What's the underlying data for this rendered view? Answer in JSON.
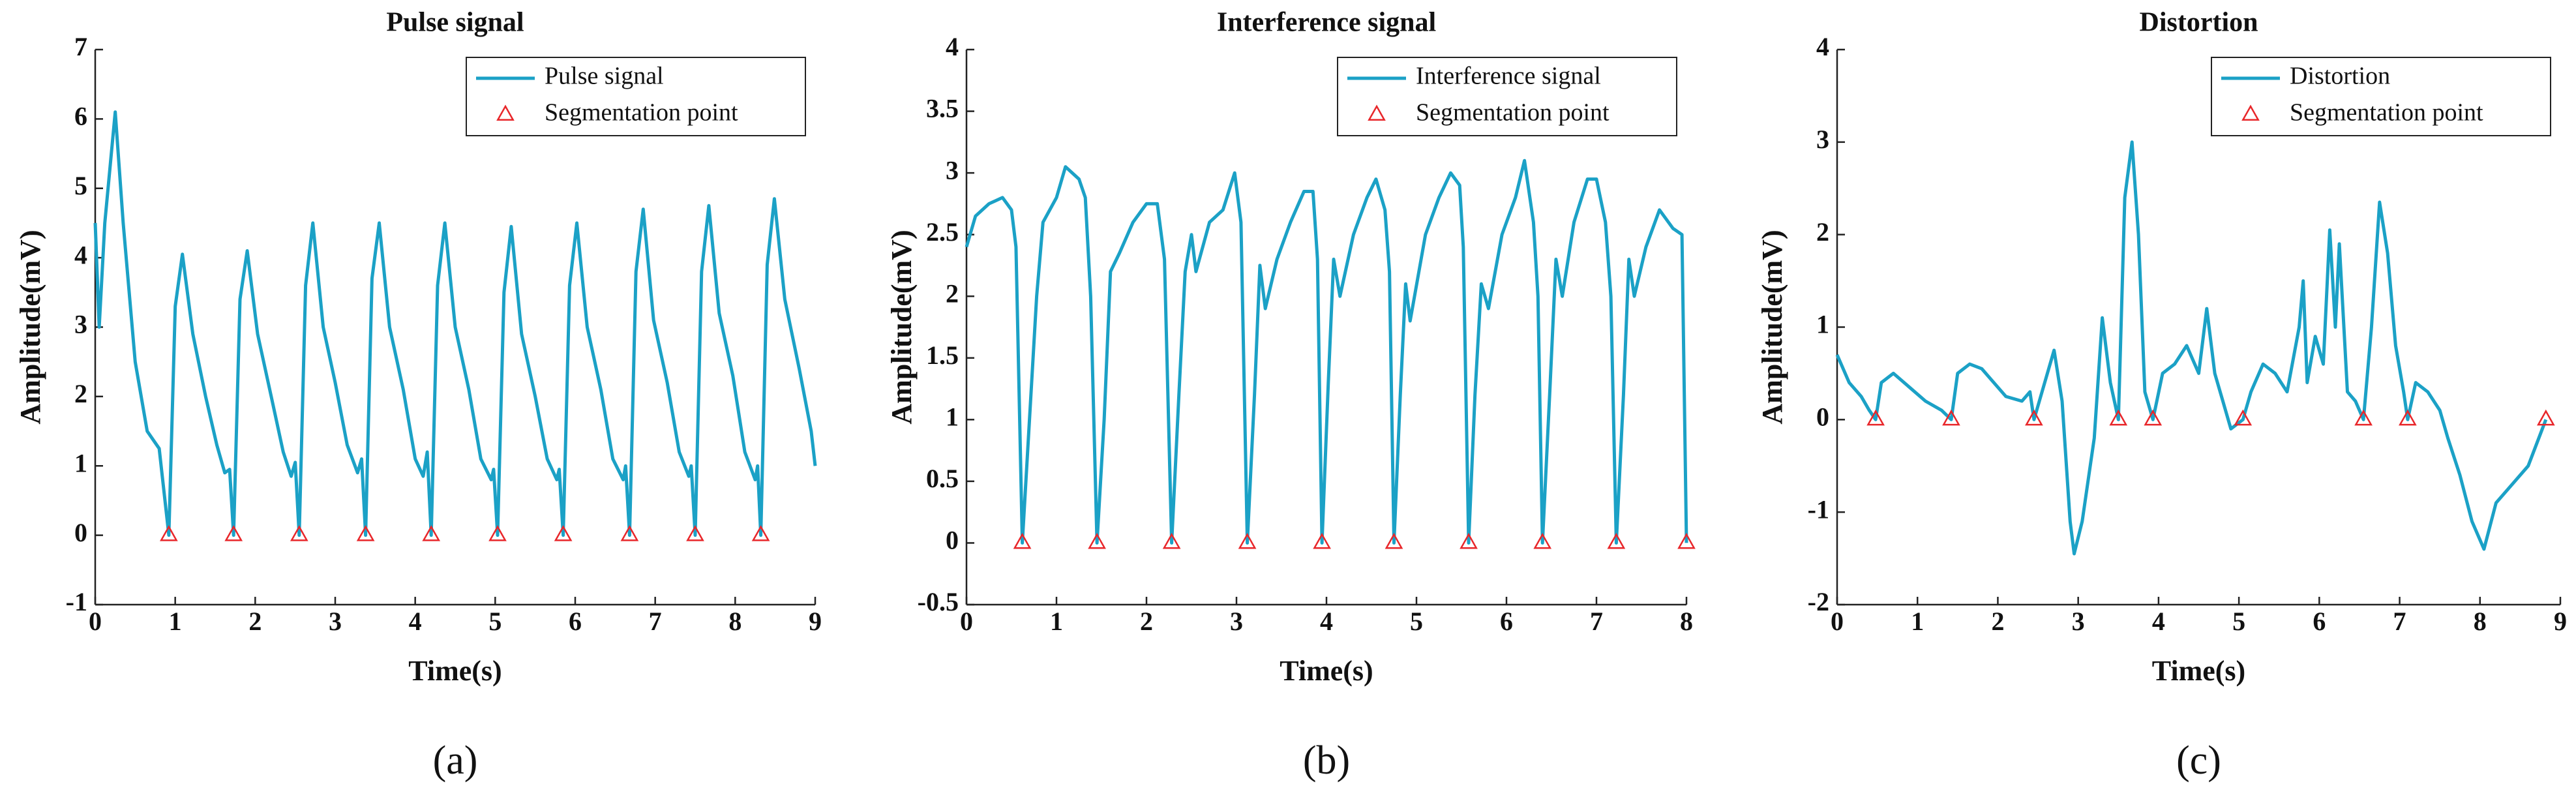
{
  "chart_data": [
    {
      "type": "line",
      "title": "Pulse signal",
      "xlabel": "Time(s)",
      "ylabel": "Amplitude(mV)",
      "panel": "(a)",
      "xlim": [
        0,
        9
      ],
      "ylim": [
        -1,
        7
      ],
      "xticks": [
        0,
        1,
        2,
        3,
        4,
        5,
        6,
        7,
        8,
        9
      ],
      "yticks": [
        -1,
        0,
        1,
        2,
        3,
        4,
        5,
        6,
        7
      ],
      "legend": "upper right",
      "series": [
        {
          "name": "Pulse signal",
          "color": "#1ba1c6",
          "x": [
            0,
            0.05,
            0.12,
            0.25,
            0.35,
            0.5,
            0.65,
            0.8,
            0.92,
            1.0,
            1.09,
            1.22,
            1.38,
            1.52,
            1.62,
            1.68,
            1.73,
            1.81,
            1.9,
            2.03,
            2.2,
            2.35,
            2.45,
            2.5,
            2.55,
            2.63,
            2.72,
            2.85,
            3.0,
            3.15,
            3.28,
            3.33,
            3.38,
            3.46,
            3.55,
            3.68,
            3.85,
            4.0,
            4.1,
            4.15,
            4.2,
            4.28,
            4.37,
            4.5,
            4.67,
            4.82,
            4.95,
            4.98,
            5.03,
            5.11,
            5.2,
            5.33,
            5.5,
            5.65,
            5.77,
            5.8,
            5.85,
            5.93,
            6.02,
            6.15,
            6.32,
            6.47,
            6.6,
            6.63,
            6.68,
            6.76,
            6.85,
            6.98,
            7.15,
            7.3,
            7.42,
            7.45,
            7.5,
            7.58,
            7.67,
            7.8,
            7.97,
            8.12,
            8.25,
            8.28,
            8.32,
            8.4,
            8.49,
            8.62,
            8.8,
            8.95,
            9.0
          ],
          "values": [
            4.5,
            3.0,
            4.5,
            6.1,
            4.5,
            2.5,
            1.5,
            1.25,
            0,
            3.3,
            4.05,
            2.9,
            2.0,
            1.3,
            0.9,
            0.95,
            0,
            3.4,
            4.1,
            2.9,
            2.0,
            1.2,
            0.85,
            1.05,
            0,
            3.6,
            4.5,
            3.0,
            2.2,
            1.3,
            0.9,
            1.1,
            0,
            3.7,
            4.5,
            3.0,
            2.1,
            1.1,
            0.85,
            1.2,
            0,
            3.6,
            4.5,
            3.0,
            2.1,
            1.1,
            0.8,
            0.95,
            0,
            3.5,
            4.45,
            2.9,
            2.0,
            1.1,
            0.8,
            0.95,
            0,
            3.6,
            4.5,
            3.0,
            2.1,
            1.1,
            0.8,
            1.0,
            0,
            3.8,
            4.7,
            3.1,
            2.2,
            1.2,
            0.85,
            1.0,
            0,
            3.8,
            4.75,
            3.2,
            2.3,
            1.2,
            0.8,
            1.0,
            0,
            3.9,
            4.85,
            3.4,
            2.4,
            1.5,
            1.0
          ]
        },
        {
          "name": "Segmentation point",
          "color": "#e8262a",
          "marker": "triangle",
          "x": [
            0.92,
            1.73,
            2.55,
            3.38,
            4.2,
            5.03,
            5.85,
            6.68,
            7.5,
            8.32
          ],
          "values": [
            0,
            0,
            0,
            0,
            0,
            0,
            0,
            0,
            0,
            0
          ]
        }
      ]
    },
    {
      "type": "line",
      "title": "Interference signal",
      "xlabel": "Time(s)",
      "ylabel": "Amplitude(mV)",
      "panel": "(b)",
      "xlim": [
        0,
        8
      ],
      "ylim": [
        -0.5,
        4
      ],
      "xticks": [
        0,
        1,
        2,
        3,
        4,
        5,
        6,
        7,
        8
      ],
      "yticks": [
        -0.5,
        0,
        0.5,
        1,
        1.5,
        2,
        2.5,
        3,
        3.5,
        4
      ],
      "legend": "upper right",
      "series": [
        {
          "name": "Interference signal",
          "color": "#1ba1c6",
          "x": [
            0,
            0.1,
            0.25,
            0.4,
            0.5,
            0.55,
            0.62,
            0.7,
            0.78,
            0.85,
            1.0,
            1.1,
            1.25,
            1.32,
            1.38,
            1.45,
            1.53,
            1.6,
            1.7,
            1.85,
            2.0,
            2.12,
            2.2,
            2.28,
            2.36,
            2.43,
            2.5,
            2.55,
            2.7,
            2.85,
            2.98,
            3.05,
            3.12,
            3.2,
            3.26,
            3.32,
            3.45,
            3.6,
            3.75,
            3.85,
            3.9,
            3.95,
            4.02,
            4.08,
            4.15,
            4.3,
            4.45,
            4.55,
            4.65,
            4.7,
            4.75,
            4.82,
            4.88,
            4.93,
            5.1,
            5.25,
            5.38,
            5.48,
            5.52,
            5.58,
            5.65,
            5.72,
            5.8,
            5.95,
            6.1,
            6.2,
            6.3,
            6.35,
            6.4,
            6.48,
            6.55,
            6.62,
            6.75,
            6.9,
            7.0,
            7.1,
            7.16,
            7.22,
            7.3,
            7.36,
            7.42,
            7.55,
            7.7,
            7.85,
            7.95,
            8.0
          ],
          "values": [
            2.4,
            2.65,
            2.75,
            2.8,
            2.7,
            2.4,
            0,
            1.0,
            2.0,
            2.6,
            2.8,
            3.05,
            2.95,
            2.8,
            2.0,
            0,
            1.0,
            2.2,
            2.35,
            2.6,
            2.75,
            2.75,
            2.3,
            0,
            1.2,
            2.2,
            2.5,
            2.2,
            2.6,
            2.7,
            3.0,
            2.6,
            0,
            1.2,
            2.25,
            1.9,
            2.3,
            2.6,
            2.85,
            2.85,
            2.3,
            0,
            1.3,
            2.3,
            2.0,
            2.5,
            2.8,
            2.95,
            2.7,
            2.2,
            0,
            1.2,
            2.1,
            1.8,
            2.5,
            2.8,
            3.0,
            2.9,
            2.4,
            0,
            1.2,
            2.1,
            1.9,
            2.5,
            2.8,
            3.1,
            2.6,
            2.0,
            0,
            1.2,
            2.3,
            2.0,
            2.6,
            2.95,
            2.95,
            2.6,
            2.0,
            0,
            1.2,
            2.3,
            2.0,
            2.4,
            2.7,
            2.55,
            2.5,
            0
          ]
        },
        {
          "name": "Segmentation point",
          "color": "#e8262a",
          "marker": "triangle",
          "x": [
            0.62,
            1.45,
            2.28,
            3.12,
            3.95,
            4.75,
            5.58,
            6.4,
            7.22,
            8.0
          ],
          "values": [
            0,
            0,
            0,
            0,
            0,
            0,
            0,
            0,
            0,
            0
          ]
        }
      ]
    },
    {
      "type": "line",
      "title": "Distortion",
      "xlabel": "Time(s)",
      "ylabel": "Amplitude(mV)",
      "panel": "(c)",
      "xlim": [
        0,
        9
      ],
      "ylim": [
        -2,
        4
      ],
      "xticks": [
        0,
        1,
        2,
        3,
        4,
        5,
        6,
        7,
        8,
        9
      ],
      "yticks": [
        -2,
        -1,
        0,
        1,
        2,
        3,
        4
      ],
      "legend": "upper right",
      "series": [
        {
          "name": "Distortion",
          "color": "#1ba1c6",
          "x": [
            0,
            0.15,
            0.3,
            0.4,
            0.48,
            0.55,
            0.7,
            0.9,
            1.1,
            1.3,
            1.42,
            1.5,
            1.65,
            1.8,
            1.95,
            2.1,
            2.3,
            2.4,
            2.45,
            2.55,
            2.7,
            2.8,
            2.9,
            2.95,
            3.05,
            3.2,
            3.3,
            3.4,
            3.5,
            3.58,
            3.67,
            3.75,
            3.83,
            3.93,
            4.05,
            4.2,
            4.35,
            4.5,
            4.6,
            4.7,
            4.8,
            4.9,
            5.05,
            5.15,
            5.3,
            5.45,
            5.6,
            5.75,
            5.8,
            5.85,
            5.95,
            6.05,
            6.13,
            6.2,
            6.25,
            6.35,
            6.45,
            6.55,
            6.65,
            6.75,
            6.85,
            6.95,
            7.05,
            7.1,
            7.2,
            7.35,
            7.5,
            7.6,
            7.75,
            7.9,
            8.05,
            8.2,
            8.4,
            8.6,
            8.82
          ],
          "values": [
            0.7,
            0.4,
            0.25,
            0.1,
            0,
            0.4,
            0.5,
            0.35,
            0.2,
            0.1,
            0,
            0.5,
            0.6,
            0.55,
            0.4,
            0.25,
            0.2,
            0.3,
            0,
            0.3,
            0.75,
            0.2,
            -1.1,
            -1.45,
            -1.1,
            -0.2,
            1.1,
            0.4,
            0,
            2.4,
            3.0,
            2.0,
            0.3,
            0,
            0.5,
            0.6,
            0.8,
            0.5,
            1.2,
            0.5,
            0.2,
            -0.1,
            0,
            0.3,
            0.6,
            0.5,
            0.3,
            1.0,
            1.5,
            0.4,
            0.9,
            0.6,
            2.05,
            1.0,
            1.9,
            0.3,
            0.2,
            0,
            1.0,
            2.35,
            1.8,
            0.8,
            0.3,
            0,
            0.4,
            0.3,
            0.1,
            -0.2,
            -0.6,
            -1.1,
            -1.4,
            -0.9,
            -0.7,
            -0.5,
            0
          ]
        },
        {
          "name": "Segmentation point",
          "color": "#e8262a",
          "marker": "triangle",
          "x": [
            0.48,
            1.42,
            2.45,
            3.5,
            3.93,
            5.05,
            6.55,
            7.1,
            8.82
          ],
          "values": [
            0,
            0,
            0,
            0,
            0,
            0,
            0,
            0,
            0
          ]
        }
      ]
    }
  ]
}
